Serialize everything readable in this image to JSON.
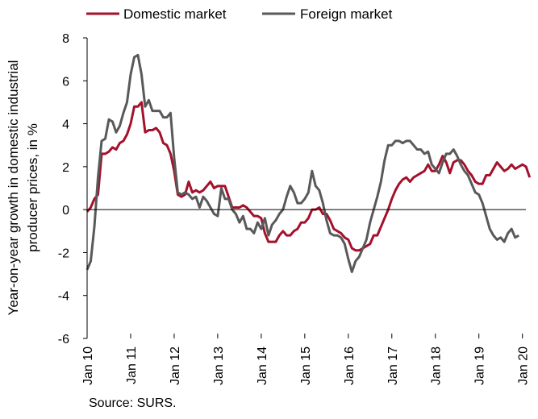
{
  "chart_data": {
    "type": "line",
    "ylabel_line1": "Year-on-year growth in domestic industrial",
    "ylabel_line2": "producer prices, in %",
    "ylim": [
      -6,
      8
    ],
    "yticks": [
      -6,
      -4,
      -2,
      0,
      2,
      4,
      6,
      8
    ],
    "xlim": [
      2010,
      2020.08
    ],
    "xticks": [
      {
        "x": 2010,
        "label": "Jan 10"
      },
      {
        "x": 2011,
        "label": "Jan 11"
      },
      {
        "x": 2012,
        "label": "Jan 12"
      },
      {
        "x": 2013,
        "label": "Jan 13"
      },
      {
        "x": 2014,
        "label": "Jan 14"
      },
      {
        "x": 2015,
        "label": "Jan 15"
      },
      {
        "x": 2016,
        "label": "Jan 16"
      },
      {
        "x": 2017,
        "label": "Jan 17"
      },
      {
        "x": 2018,
        "label": "Jan 18"
      },
      {
        "x": 2019,
        "label": "Jan 19"
      },
      {
        "x": 2020,
        "label": "Jan 20"
      }
    ],
    "grid": false,
    "legend_position": "top",
    "x_start": 2010,
    "x_step": 0.0833333,
    "series": [
      {
        "name": "Domestic market",
        "color": "#a3112b",
        "values": [
          -0.1,
          0.1,
          0.5,
          0.7,
          2.6,
          2.6,
          2.7,
          2.9,
          2.8,
          3.1,
          3.2,
          3.5,
          4.0,
          4.8,
          4.8,
          5.0,
          3.6,
          3.7,
          3.7,
          3.8,
          3.6,
          3.1,
          3.0,
          2.6,
          1.8,
          0.7,
          0.6,
          0.7,
          1.3,
          0.8,
          0.9,
          0.8,
          0.9,
          1.1,
          1.3,
          1.0,
          1.1,
          1.1,
          1.1,
          0.6,
          0.1,
          0.1,
          0.1,
          0.2,
          0.1,
          -0.1,
          -0.3,
          -0.3,
          -0.4,
          -1.1,
          -1.5,
          -1.5,
          -1.5,
          -1.2,
          -1.0,
          -1.2,
          -1.2,
          -1.0,
          -0.9,
          -0.6,
          -0.6,
          -0.4,
          0.0,
          0.0,
          0.1,
          -0.2,
          -0.2,
          -0.5,
          -0.9,
          -1.0,
          -1.1,
          -1.3,
          -1.4,
          -1.8,
          -1.9,
          -1.9,
          -1.8,
          -1.7,
          -1.6,
          -1.2,
          -1.2,
          -0.8,
          -0.4,
          0.0,
          0.5,
          0.9,
          1.2,
          1.4,
          1.5,
          1.3,
          1.5,
          1.6,
          1.7,
          1.8,
          2.1,
          1.8,
          1.8,
          2.1,
          2.5,
          2.2,
          1.7,
          2.2,
          2.3,
          2.3,
          2.1,
          1.8,
          1.6,
          1.3,
          1.2,
          1.2,
          1.6,
          1.6,
          1.9,
          2.2,
          2.0,
          1.8,
          1.9,
          2.1,
          1.9,
          2.0,
          2.1,
          2.0,
          1.5
        ]
      },
      {
        "name": "Foreign market",
        "color": "#595959",
        "values": [
          -2.8,
          -2.4,
          -0.8,
          1.5,
          3.2,
          3.3,
          4.2,
          4.1,
          3.6,
          3.9,
          4.5,
          5.0,
          6.3,
          7.1,
          7.2,
          6.3,
          4.8,
          5.1,
          4.6,
          4.6,
          4.6,
          4.3,
          4.3,
          4.5,
          2.4,
          0.8,
          0.7,
          0.8,
          0.7,
          0.5,
          0.6,
          0.1,
          0.6,
          0.4,
          0.1,
          -0.2,
          -0.3,
          1.0,
          0.5,
          0.5,
          0.0,
          -0.2,
          -0.6,
          -0.3,
          -0.9,
          -0.9,
          -1.1,
          -0.6,
          -0.9,
          -0.4,
          -1.2,
          -0.7,
          -0.5,
          -0.2,
          0.0,
          0.6,
          1.1,
          0.8,
          0.3,
          0.3,
          0.5,
          0.8,
          1.8,
          1.1,
          0.9,
          0.3,
          -0.5,
          -1.1,
          -1.2,
          -1.2,
          -1.3,
          -1.6,
          -2.3,
          -2.9,
          -2.4,
          -2.2,
          -1.8,
          -1.4,
          -0.6,
          0.0,
          0.6,
          1.3,
          2.3,
          3.0,
          3.0,
          3.2,
          3.2,
          3.1,
          3.2,
          3.2,
          3.0,
          2.8,
          2.8,
          2.6,
          2.7,
          2.1,
          1.9,
          1.7,
          2.2,
          2.6,
          2.6,
          2.8,
          2.5,
          2.1,
          1.8,
          1.6,
          1.2,
          0.8,
          0.7,
          0.3,
          -0.3,
          -0.9,
          -1.2,
          -1.4,
          -1.3,
          -1.5,
          -1.1,
          -0.9,
          -1.3,
          -1.2
        ]
      }
    ]
  },
  "footer": {
    "source": "Source: SURS."
  }
}
